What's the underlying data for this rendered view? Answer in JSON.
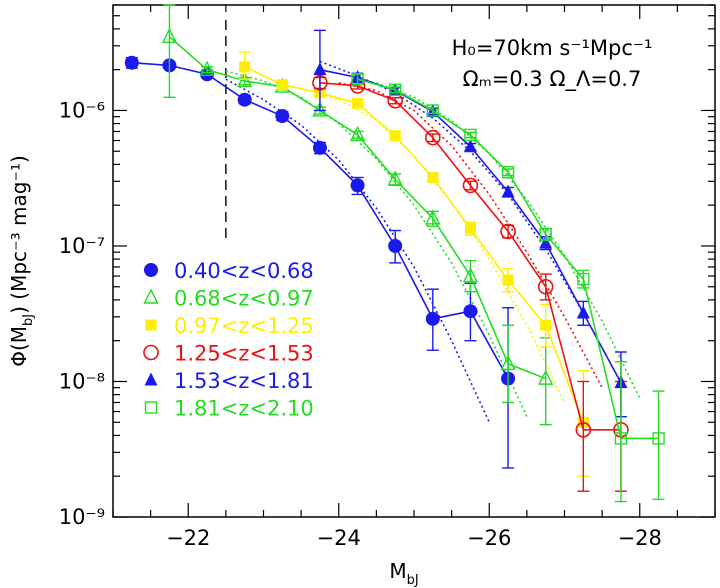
{
  "chart_data": {
    "type": "line",
    "title": "",
    "xlabel": "M",
    "xlabel_sub": "bJ",
    "ylabel_prefix": "Φ(M",
    "ylabel_sub": "bJ",
    "ylabel_suffix": ")  (Mpc⁻³ mag⁻¹)",
    "x_scale": "linear",
    "x_reversed": true,
    "xlim": [
      -21.0,
      -29.0
    ],
    "y_scale": "log",
    "ylim": [
      1e-09,
      6e-06
    ],
    "x_ticks": [
      -22,
      -24,
      -26,
      -28
    ],
    "x_tick_labels": [
      "−22",
      "−24",
      "−26",
      "−28"
    ],
    "y_ticks": [
      1e-09,
      1e-08,
      1e-07,
      1e-06
    ],
    "y_tick_labels": [
      "10⁻⁹",
      "10⁻⁸",
      "10⁻⁷",
      "10⁻⁶"
    ],
    "annotation_line1": "H₀=70km s⁻¹Mpc⁻¹",
    "annotation_line2": "Ωₘ=0.3  Ω_Λ=0.7",
    "vertical_dashed_line_x": -22.5,
    "legend_position": "left-center",
    "series": [
      {
        "name": "0.40<z<0.68",
        "color": "#1a1aee",
        "marker": "filled-circle",
        "points": [
          {
            "x": -21.25,
            "y": 2.25e-06,
            "lo": 2.05e-06,
            "hi": 2.45e-06
          },
          {
            "x": -21.75,
            "y": 2.15e-06,
            "lo": 2.05e-06,
            "hi": 2.25e-06
          },
          {
            "x": -22.25,
            "y": 1.85e-06,
            "lo": 1.75e-06,
            "hi": 1.95e-06
          },
          {
            "x": -22.75,
            "y": 1.2e-06,
            "lo": 1.12e-06,
            "hi": 1.28e-06
          },
          {
            "x": -23.25,
            "y": 9.1e-07,
            "lo": 8.4e-07,
            "hi": 9.8e-07
          },
          {
            "x": -23.75,
            "y": 5.3e-07,
            "lo": 4.8e-07,
            "hi": 5.8e-07
          },
          {
            "x": -24.25,
            "y": 2.8e-07,
            "lo": 2.4e-07,
            "hi": 3.2e-07
          },
          {
            "x": -24.75,
            "y": 1e-07,
            "lo": 7.5e-08,
            "hi": 1.3e-07
          },
          {
            "x": -25.25,
            "y": 2.9e-08,
            "lo": 1.7e-08,
            "hi": 4.8e-08
          },
          {
            "x": -25.75,
            "y": 3.3e-08,
            "lo": 2e-08,
            "hi": 5.3e-08
          },
          {
            "x": -26.25,
            "y": 1.05e-08,
            "lo": 2.3e-09,
            "hi": 3.5e-08
          }
        ],
        "model": [
          {
            "x": -22.5,
            "y": 1.7e-06
          },
          {
            "x": -23.0,
            "y": 1.2e-06
          },
          {
            "x": -23.5,
            "y": 7.8e-07
          },
          {
            "x": -24.0,
            "y": 4.3e-07
          },
          {
            "x": -24.5,
            "y": 1.9e-07
          },
          {
            "x": -25.0,
            "y": 7e-08
          },
          {
            "x": -25.5,
            "y": 2e-08
          },
          {
            "x": -26.0,
            "y": 5e-09
          }
        ]
      },
      {
        "name": "0.68<z<0.97",
        "color": "#22dd22",
        "marker": "open-triangle",
        "points": [
          {
            "x": -21.75,
            "y": 3.5e-06,
            "lo": 1.25e-06,
            "hi": 6e-06
          },
          {
            "x": -22.25,
            "y": 2e-06,
            "lo": 1.9e-06,
            "hi": 2.1e-06
          },
          {
            "x": -22.75,
            "y": 1.65e-06,
            "lo": 1.55e-06,
            "hi": 1.75e-06
          },
          {
            "x": -23.25,
            "y": 1.5e-06,
            "lo": 1.42e-06,
            "hi": 1.58e-06
          },
          {
            "x": -23.75,
            "y": 1e-06,
            "lo": 9.4e-07,
            "hi": 1.06e-06
          },
          {
            "x": -24.25,
            "y": 6.6e-07,
            "lo": 6.2e-07,
            "hi": 7e-07
          },
          {
            "x": -24.75,
            "y": 3.1e-07,
            "lo": 2.8e-07,
            "hi": 3.4e-07
          },
          {
            "x": -25.25,
            "y": 1.6e-07,
            "lo": 1.4e-07,
            "hi": 1.8e-07
          },
          {
            "x": -25.75,
            "y": 6e-08,
            "lo": 4.6e-08,
            "hi": 7.8e-08
          },
          {
            "x": -26.25,
            "y": 1.35e-08,
            "lo": 7e-09,
            "hi": 2.6e-08
          },
          {
            "x": -26.75,
            "y": 1.05e-08,
            "lo": 4.8e-09,
            "hi": 2.1e-08
          }
        ],
        "model": [
          {
            "x": -22.5,
            "y": 1.95e-06
          },
          {
            "x": -23.0,
            "y": 1.65e-06
          },
          {
            "x": -23.5,
            "y": 1.25e-06
          },
          {
            "x": -24.0,
            "y": 8e-07
          },
          {
            "x": -24.5,
            "y": 4.4e-07
          },
          {
            "x": -25.0,
            "y": 2e-07
          },
          {
            "x": -25.5,
            "y": 7.5e-08
          },
          {
            "x": -26.0,
            "y": 2.2e-08
          },
          {
            "x": -26.5,
            "y": 5.5e-09
          }
        ]
      },
      {
        "name": "0.97<z<1.25",
        "color": "#ffee00",
        "marker": "filled-square",
        "points": [
          {
            "x": -22.75,
            "y": 2.1e-06,
            "lo": 1.7e-06,
            "hi": 2.7e-06
          },
          {
            "x": -23.25,
            "y": 1.55e-06,
            "lo": 1.45e-06,
            "hi": 1.65e-06
          },
          {
            "x": -23.75,
            "y": 1.35e-06,
            "lo": 1.28e-06,
            "hi": 1.42e-06
          },
          {
            "x": -24.25,
            "y": 1.13e-06,
            "lo": 1.07e-06,
            "hi": 1.19e-06
          },
          {
            "x": -24.75,
            "y": 6.5e-07,
            "lo": 6.1e-07,
            "hi": 6.9e-07
          },
          {
            "x": -25.25,
            "y": 3.2e-07,
            "lo": 2.95e-07,
            "hi": 3.45e-07
          },
          {
            "x": -25.75,
            "y": 1.35e-07,
            "lo": 1.2e-07,
            "hi": 1.5e-07
          },
          {
            "x": -26.25,
            "y": 5.6e-08,
            "lo": 4.6e-08,
            "hi": 6.8e-08
          },
          {
            "x": -26.75,
            "y": 2.6e-08,
            "lo": 1.8e-08,
            "hi": 3.7e-08
          },
          {
            "x": -27.25,
            "y": 5e-09,
            "lo": 2e-09,
            "hi": 1.2e-08
          }
        ],
        "model": [
          {
            "x": -23.5,
            "y": 1.45e-06
          },
          {
            "x": -24.0,
            "y": 1.2e-06
          },
          {
            "x": -24.5,
            "y": 8.5e-07
          },
          {
            "x": -25.0,
            "y": 4.6e-07
          },
          {
            "x": -25.5,
            "y": 2.1e-07
          },
          {
            "x": -26.0,
            "y": 8e-08
          },
          {
            "x": -26.5,
            "y": 2.6e-08
          },
          {
            "x": -27.0,
            "y": 7e-09
          }
        ]
      },
      {
        "name": "1.25<z<1.53",
        "color": "#ee1111",
        "marker": "open-circle",
        "points": [
          {
            "x": -23.75,
            "y": 1.6e-06,
            "lo": 1.45e-06,
            "hi": 1.75e-06
          },
          {
            "x": -24.25,
            "y": 1.52e-06,
            "lo": 1.44e-06,
            "hi": 1.6e-06
          },
          {
            "x": -24.75,
            "y": 1.18e-06,
            "lo": 1.12e-06,
            "hi": 1.24e-06
          },
          {
            "x": -25.25,
            "y": 6.3e-07,
            "lo": 5.9e-07,
            "hi": 6.7e-07
          },
          {
            "x": -25.75,
            "y": 2.8e-07,
            "lo": 2.6e-07,
            "hi": 3e-07
          },
          {
            "x": -26.25,
            "y": 1.28e-07,
            "lo": 1.15e-07,
            "hi": 1.42e-07
          },
          {
            "x": -26.75,
            "y": 5e-08,
            "lo": 4e-08,
            "hi": 6.2e-08
          },
          {
            "x": -27.25,
            "y": 4.4e-09,
            "lo": 1.55e-09,
            "hi": 1e-08
          },
          {
            "x": -27.75,
            "y": 4.4e-09,
            "lo": 1.55e-09,
            "hi": 1e-08
          }
        ],
        "model": [
          {
            "x": -24.0,
            "y": 1.6e-06
          },
          {
            "x": -24.5,
            "y": 1.4e-06
          },
          {
            "x": -25.0,
            "y": 1e-06
          },
          {
            "x": -25.5,
            "y": 5.5e-07
          },
          {
            "x": -26.0,
            "y": 2.4e-07
          },
          {
            "x": -26.5,
            "y": 9e-08
          },
          {
            "x": -27.0,
            "y": 3e-08
          },
          {
            "x": -27.5,
            "y": 9e-09
          }
        ]
      },
      {
        "name": "1.53<z<1.81",
        "color": "#1a1aee",
        "marker": "filled-triangle",
        "points": [
          {
            "x": -23.75,
            "y": 2e-06,
            "lo": 1e-06,
            "hi": 3.9e-06
          },
          {
            "x": -24.25,
            "y": 1.75e-06,
            "lo": 1.62e-06,
            "hi": 1.88e-06
          },
          {
            "x": -24.75,
            "y": 1.4e-06,
            "lo": 1.33e-06,
            "hi": 1.47e-06
          },
          {
            "x": -25.25,
            "y": 9.8e-07,
            "lo": 9.3e-07,
            "hi": 1.03e-06
          },
          {
            "x": -25.75,
            "y": 5.4e-07,
            "lo": 5.1e-07,
            "hi": 5.7e-07
          },
          {
            "x": -26.25,
            "y": 2.5e-07,
            "lo": 2.3e-07,
            "hi": 2.7e-07
          },
          {
            "x": -26.75,
            "y": 1.05e-07,
            "lo": 9.4e-08,
            "hi": 1.17e-07
          },
          {
            "x": -27.25,
            "y": 3.2e-08,
            "lo": 2.6e-08,
            "hi": 3.9e-08
          },
          {
            "x": -27.75,
            "y": 9.8e-09,
            "lo": 5.5e-09,
            "hi": 1.65e-08
          }
        ],
        "model": [
          {
            "x": -23.75,
            "y": 2.3e-06
          },
          {
            "x": -24.25,
            "y": 1.8e-06
          },
          {
            "x": -24.75,
            "y": 1.35e-06
          },
          {
            "x": -25.25,
            "y": 8.8e-07
          },
          {
            "x": -25.75,
            "y": 5e-07
          },
          {
            "x": -26.25,
            "y": 2.4e-07
          },
          {
            "x": -26.75,
            "y": 9.5e-08
          },
          {
            "x": -27.25,
            "y": 3.2e-08
          }
        ]
      },
      {
        "name": "1.81<z<2.10",
        "color": "#22dd22",
        "marker": "open-square",
        "points": [
          {
            "x": -24.25,
            "y": 1.7e-06,
            "lo": 1.55e-06,
            "hi": 1.85e-06
          },
          {
            "x": -24.75,
            "y": 1.42e-06,
            "lo": 1.35e-06,
            "hi": 1.49e-06
          },
          {
            "x": -25.25,
            "y": 1e-06,
            "lo": 9.5e-07,
            "hi": 1.05e-06
          },
          {
            "x": -25.75,
            "y": 6.6e-07,
            "lo": 6.3e-07,
            "hi": 6.9e-07
          },
          {
            "x": -26.25,
            "y": 3.5e-07,
            "lo": 3.3e-07,
            "hi": 3.7e-07
          },
          {
            "x": -26.75,
            "y": 1.22e-07,
            "lo": 1.1e-07,
            "hi": 1.35e-07
          },
          {
            "x": -27.25,
            "y": 5.7e-08,
            "lo": 4.9e-08,
            "hi": 6.6e-08
          },
          {
            "x": -27.75,
            "y": 3.8e-09,
            "lo": 1.3e-09,
            "hi": 1.4e-08
          },
          {
            "x": -28.25,
            "y": 3.8e-09,
            "lo": 1.35e-09,
            "hi": 8.5e-09
          }
        ],
        "model": [
          {
            "x": -24.5,
            "y": 1.6e-06
          },
          {
            "x": -25.0,
            "y": 1.25e-06
          },
          {
            "x": -25.5,
            "y": 8.4e-07
          },
          {
            "x": -26.0,
            "y": 4.8e-07
          },
          {
            "x": -26.5,
            "y": 2.2e-07
          },
          {
            "x": -27.0,
            "y": 8.5e-08
          },
          {
            "x": -27.5,
            "y": 2.8e-08
          },
          {
            "x": -28.0,
            "y": 7.5e-09
          }
        ]
      }
    ]
  }
}
